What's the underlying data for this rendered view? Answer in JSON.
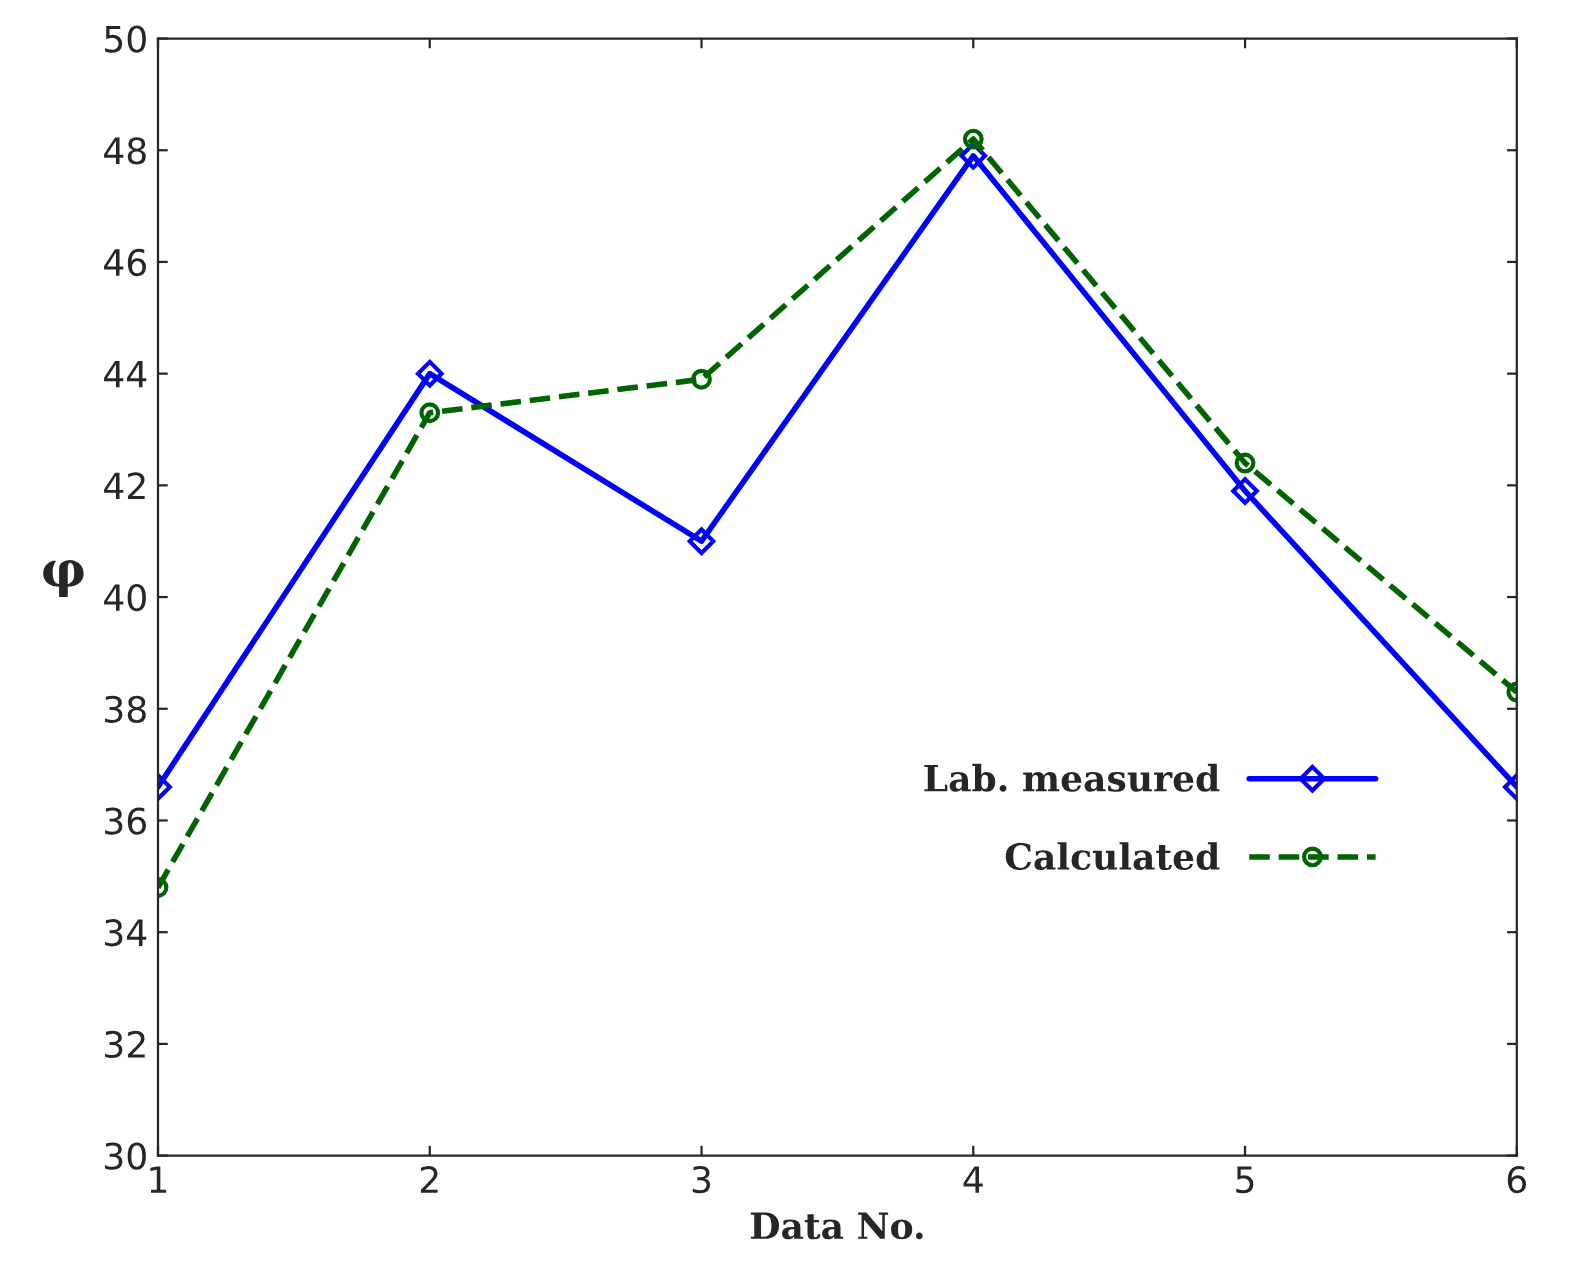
{
  "chart_data": {
    "type": "line",
    "xlabel": "Data No.",
    "ylabel": "φ",
    "x": [
      1,
      2,
      3,
      4,
      5,
      6
    ],
    "series": [
      {
        "name": "Lab. measured",
        "color": "#0000ff",
        "values": [
          36.6,
          44.0,
          41.0,
          47.9,
          41.9,
          36.6
        ],
        "marker": "diamond",
        "line_style": "solid"
      },
      {
        "name": "Calculated",
        "color": "#006400",
        "values": [
          34.8,
          43.3,
          43.9,
          48.2,
          42.4,
          38.3
        ],
        "marker": "circle",
        "line_style": "dashed"
      }
    ],
    "xlim": [
      1,
      6
    ],
    "xticks": [
      1,
      2,
      3,
      4,
      5,
      6
    ],
    "ylim": [
      30,
      50
    ],
    "yticks": [
      30,
      32,
      34,
      36,
      38,
      40,
      42,
      44,
      46,
      48,
      50
    ],
    "grid": false,
    "legend": "center right"
  }
}
